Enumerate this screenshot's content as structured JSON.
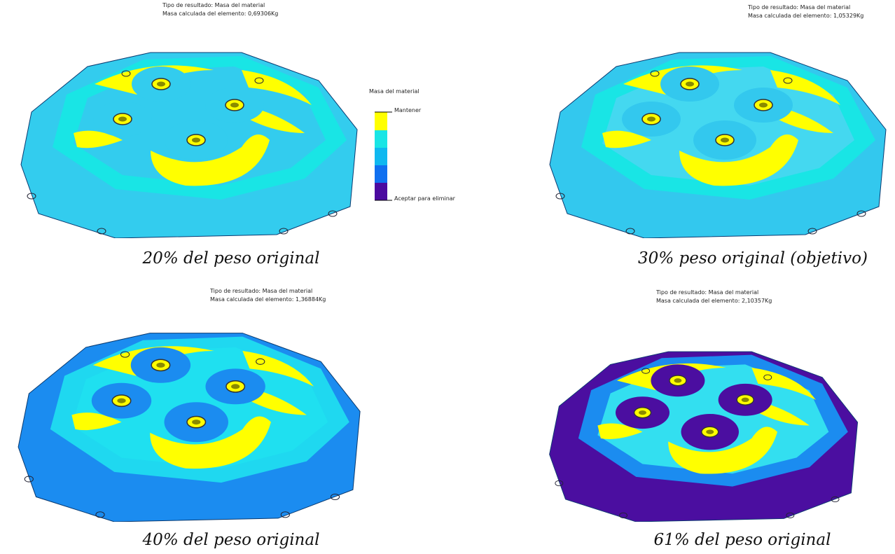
{
  "panels": [
    {
      "result_type": "Tipo de resultado: Masa del material",
      "mass": "Masa calculada del elemento:  0,69306Kg",
      "caption": "20% del peso original"
    },
    {
      "result_type": "Tipo de resultado: Masa del material",
      "mass": "Masa calculada del elemento:  1,05329Kg",
      "caption": "30% peso original (objetivo)"
    },
    {
      "result_type": "Tipo de resultado: Masa del material",
      "mass": "Masa calculada del elemento:  1,36884Kg",
      "caption": "40% del peso original"
    },
    {
      "result_type": "Tipo de resultado: Masa del material",
      "mass": "Masa calculada del elemento:  2,10357Kg",
      "caption": "61% del peso original"
    }
  ],
  "legend": {
    "title": "Masa del material",
    "top_label": "Mantener",
    "bottom_label": "Aceptar para eliminar"
  }
}
